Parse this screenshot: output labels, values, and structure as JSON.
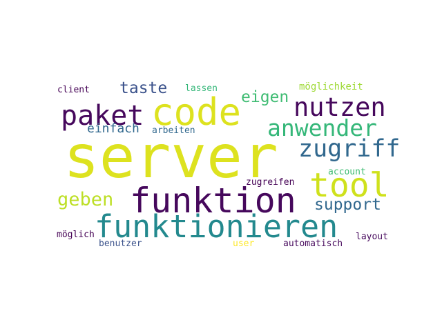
{
  "wordcloud": {
    "words": [
      {
        "text": "server",
        "color": "#dde21f"
      },
      {
        "text": "funktion",
        "color": "#46085c"
      },
      {
        "text": "funktionieren",
        "color": "#23898e"
      },
      {
        "text": "code",
        "color": "#dde21f"
      },
      {
        "text": "tool",
        "color": "#cfe11c"
      },
      {
        "text": "paket",
        "color": "#46085c"
      },
      {
        "text": "nutzen",
        "color": "#46085c"
      },
      {
        "text": "anwender",
        "color": "#35b779"
      },
      {
        "text": "zugriff",
        "color": "#31688e"
      },
      {
        "text": "taste",
        "color": "#3b528b"
      },
      {
        "text": "eigen",
        "color": "#3fbc73"
      },
      {
        "text": "geben",
        "color": "#bddf26"
      },
      {
        "text": "support",
        "color": "#31688e"
      },
      {
        "text": "einfach",
        "color": "#31688e"
      },
      {
        "text": "arbeiten",
        "color": "#31688e"
      },
      {
        "text": "client",
        "color": "#440154"
      },
      {
        "text": "lassen",
        "color": "#35b779"
      },
      {
        "text": "möglichkeit",
        "color": "#a0da39"
      },
      {
        "text": "account",
        "color": "#3fbc73"
      },
      {
        "text": "zugreifen",
        "color": "#440154"
      },
      {
        "text": "möglich",
        "color": "#440154"
      },
      {
        "text": "benutzer",
        "color": "#3b528b"
      },
      {
        "text": "user",
        "color": "#fde725"
      },
      {
        "text": "automatisch",
        "color": "#46085c"
      },
      {
        "text": "layout",
        "color": "#46085c"
      }
    ]
  }
}
